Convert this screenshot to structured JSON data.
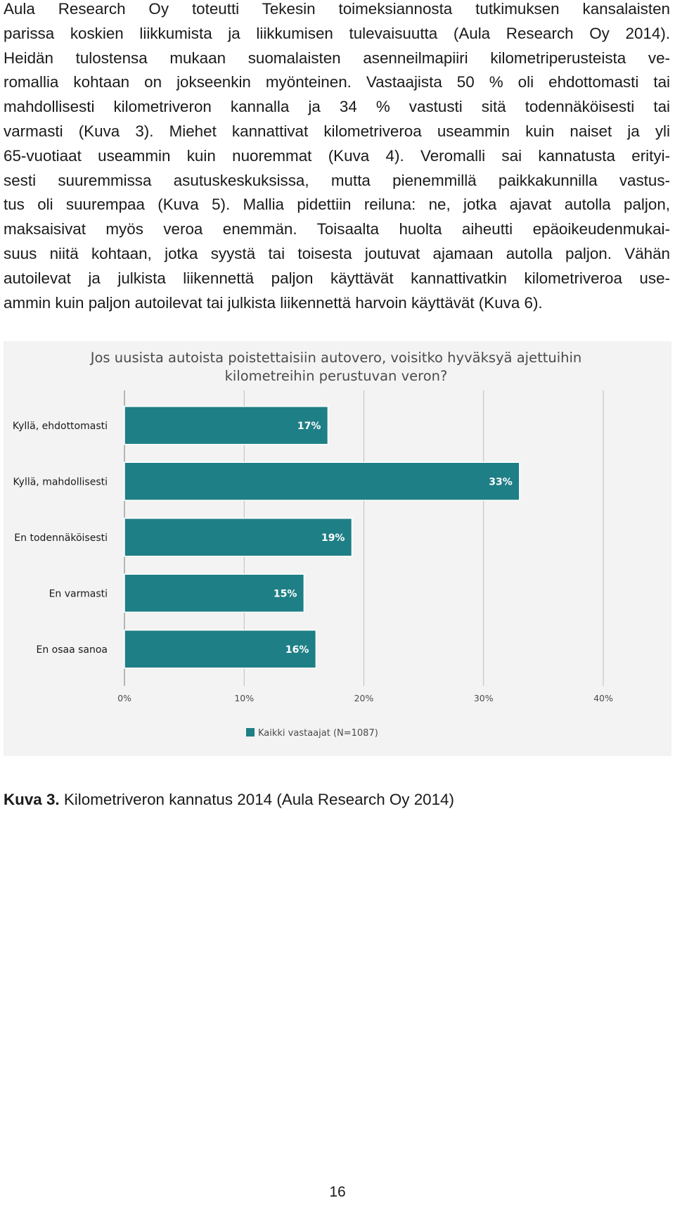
{
  "paragraph_lines": [
    "Aula Research Oy toteutti Tekesin toimeksiannosta tutkimuksen kansalaisten",
    "parissa koskien liikkumista ja liikkumisen tulevaisuutta (Aula Research Oy 2014).",
    "Heidän tulostensa mukaan suomalaisten asenneilmapiiri kilometriperusteista ve-",
    "romallia kohtaan on jokseenkin myönteinen. Vastaajista 50 % oli ehdottomasti tai",
    "mahdollisesti kilometriveron kannalla ja 34 % vastusti sitä todennäköisesti tai",
    "varmasti (Kuva 3). Miehet kannattivat kilometriveroa useammin kuin naiset ja yli",
    "65-vuotiaat useammin kuin nuoremmat (Kuva 4). Veromalli sai kannatusta erityi-",
    "sesti suuremmissa asutuskeskuksissa, mutta pienemmillä paikkakunnilla vastus-",
    "tus oli suurempaa (Kuva 5). Mallia pidettiin reiluna: ne, jotka ajavat autolla paljon,",
    "maksaisivat myös veroa enemmän. Toisaalta huolta aiheutti epäoikeudenmukai-",
    "suus niitä kohtaan, jotka syystä tai toisesta joutuvat ajamaan autolla paljon. Vähän",
    "autoilevat ja julkista liikennettä paljon käyttävät kannattivatkin kilometriveroa use-",
    "ammin kuin paljon autoilevat tai julkista liikennettä harvoin käyttävät (Kuva 6)."
  ],
  "chart_data": {
    "type": "bar",
    "orientation": "horizontal",
    "title_lines": [
      "Jos uusista autoista poistettaisiin autovero, voisitko hyväksyä ajettuihin",
      "kilometreihin perustuvan veron?"
    ],
    "categories": [
      "Kyllä, ehdottomasti",
      "Kyllä, mahdollisesti",
      "En todennäköisesti",
      "En varmasti",
      "En osaa sanoa"
    ],
    "values": [
      17,
      33,
      19,
      15,
      16
    ],
    "value_labels": [
      "17%",
      "33%",
      "19%",
      "15%",
      "16%"
    ],
    "xlim": [
      0,
      40
    ],
    "x_ticks": [
      0,
      10,
      20,
      30,
      40
    ],
    "x_tick_labels": [
      "0%",
      "10%",
      "20%",
      "30%",
      "40%"
    ],
    "series_name": "Kaikki vastaajat (N=1087)",
    "legend_position": "bottom",
    "bar_color": "#1f7f86",
    "bar_edge_color": "#ffffff",
    "background_color": "#f3f3f3"
  },
  "caption": {
    "label": "Kuva 3.",
    "text": " Kilometriveron kannatus 2014 (Aula Research Oy 2014)"
  },
  "page_number": "16"
}
